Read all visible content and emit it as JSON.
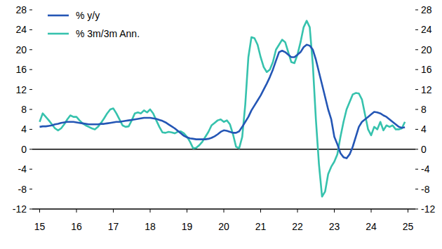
{
  "chart_data": {
    "type": "line",
    "x": [
      15,
      15.083,
      15.167,
      15.25,
      15.333,
      15.417,
      15.5,
      15.583,
      15.667,
      15.75,
      15.833,
      15.917,
      16,
      16.083,
      16.167,
      16.25,
      16.333,
      16.417,
      16.5,
      16.583,
      16.667,
      16.75,
      16.833,
      16.917,
      17,
      17.083,
      17.167,
      17.25,
      17.333,
      17.417,
      17.5,
      17.583,
      17.667,
      17.75,
      17.833,
      17.917,
      18,
      18.083,
      18.167,
      18.25,
      18.333,
      18.417,
      18.5,
      18.583,
      18.667,
      18.75,
      18.833,
      18.917,
      19,
      19.083,
      19.167,
      19.25,
      19.333,
      19.417,
      19.5,
      19.583,
      19.667,
      19.75,
      19.833,
      19.917,
      20,
      20.083,
      20.167,
      20.25,
      20.333,
      20.417,
      20.5,
      20.583,
      20.667,
      20.75,
      20.833,
      20.917,
      21,
      21.083,
      21.167,
      21.25,
      21.333,
      21.417,
      21.5,
      21.583,
      21.667,
      21.75,
      21.833,
      21.917,
      22,
      22.083,
      22.167,
      22.25,
      22.333,
      22.417,
      22.5,
      22.583,
      22.667,
      22.75,
      22.833,
      22.917,
      23,
      23.083,
      23.167,
      23.25,
      23.333,
      23.417,
      23.5,
      23.583,
      23.667,
      23.75,
      23.833,
      23.917,
      24,
      24.083,
      24.167,
      24.25,
      24.333,
      24.417,
      24.5,
      24.583,
      24.667,
      24.75,
      24.833,
      24.917
    ],
    "series": [
      {
        "name": "% y/y",
        "color": "#2456b5",
        "values": [
          4.5,
          4.6,
          4.6,
          4.7,
          4.8,
          5.0,
          5.1,
          5.3,
          5.4,
          5.5,
          5.5,
          5.5,
          5.4,
          5.3,
          5.2,
          5.1,
          5.0,
          5.0,
          5.0,
          5.0,
          5.1,
          5.1,
          5.2,
          5.3,
          5.4,
          5.5,
          5.5,
          5.6,
          5.7,
          5.8,
          5.9,
          6.0,
          6.1,
          6.2,
          6.3,
          6.3,
          6.3,
          6.2,
          6.1,
          5.9,
          5.7,
          5.4,
          5.0,
          4.6,
          4.2,
          3.7,
          3.2,
          2.7,
          2.4,
          2.2,
          2.1,
          2.0,
          2.0,
          2.0,
          2.0,
          2.1,
          2.3,
          2.6,
          3.0,
          3.5,
          3.8,
          3.7,
          3.5,
          3.3,
          3.3,
          3.6,
          4.5,
          5.5,
          6.5,
          7.8,
          8.8,
          9.8,
          10.8,
          12.0,
          13.2,
          14.5,
          16.0,
          17.8,
          19.5,
          19.8,
          19.5,
          19.0,
          18.5,
          18.5,
          19.0,
          19.5,
          20.5,
          21.0,
          20.8,
          20.0,
          18.0,
          15.5,
          13.0,
          10.5,
          8.0,
          6.0,
          2.5,
          1.0,
          -0.8,
          -1.6,
          -1.8,
          -1.0,
          0.5,
          2.5,
          4.5,
          5.5,
          6.0,
          6.5,
          7.0,
          7.5,
          7.4,
          7.2,
          6.8,
          6.5,
          6.0,
          5.5,
          5.0,
          4.5,
          4.3,
          4.4
        ]
      },
      {
        "name": "% 3m/3m Ann.",
        "color": "#36c2ad",
        "values": [
          5.5,
          7.2,
          6.5,
          5.8,
          5.0,
          4.2,
          3.8,
          4.2,
          5.0,
          6.0,
          6.8,
          6.5,
          6.5,
          5.8,
          5.2,
          4.8,
          4.5,
          4.2,
          4.0,
          4.5,
          5.3,
          6.2,
          7.2,
          8.0,
          8.2,
          7.2,
          6.0,
          4.8,
          4.5,
          4.6,
          5.8,
          7.2,
          7.4,
          7.2,
          7.8,
          7.4,
          8.0,
          7.2,
          5.8,
          4.5,
          3.4,
          3.3,
          3.5,
          3.4,
          3.2,
          3.5,
          3.6,
          3.2,
          2.5,
          1.5,
          0.2,
          0.3,
          0.8,
          1.5,
          2.5,
          3.5,
          4.8,
          5.3,
          5.8,
          6.0,
          5.5,
          5.8,
          5.0,
          3.0,
          0.5,
          0.2,
          2.5,
          9.0,
          18.5,
          22.5,
          22.3,
          21.0,
          18.5,
          16.5,
          15.5,
          16.0,
          17.5,
          20.0,
          21.0,
          22.0,
          21.5,
          19.5,
          17.5,
          17.3,
          19.0,
          21.5,
          24.5,
          25.8,
          24.5,
          17.0,
          6.0,
          -3.0,
          -9.5,
          -8.5,
          -5.0,
          -3.5,
          -2.5,
          -1.0,
          2.5,
          5.5,
          8.0,
          9.5,
          11.0,
          11.3,
          11.2,
          10.0,
          7.0,
          4.0,
          2.8,
          4.5,
          4.0,
          5.5,
          3.8,
          4.8,
          4.5,
          4.8,
          4.0,
          4.0,
          4.2,
          5.5
        ]
      }
    ],
    "xlim": [
      14.8,
      25.2
    ],
    "xticks": [
      15,
      16,
      17,
      18,
      19,
      20,
      21,
      22,
      23,
      24,
      25
    ],
    "ylim": [
      -12,
      28
    ],
    "yticks": [
      -12,
      -8,
      -4,
      0,
      4,
      8,
      12,
      16,
      20,
      24,
      28
    ],
    "y2lim": [
      -12,
      28
    ],
    "y2ticks": [
      -12,
      -8,
      -4,
      0,
      4,
      8,
      12,
      16,
      20,
      24,
      28
    ],
    "grid": false,
    "legend": "top-left"
  }
}
